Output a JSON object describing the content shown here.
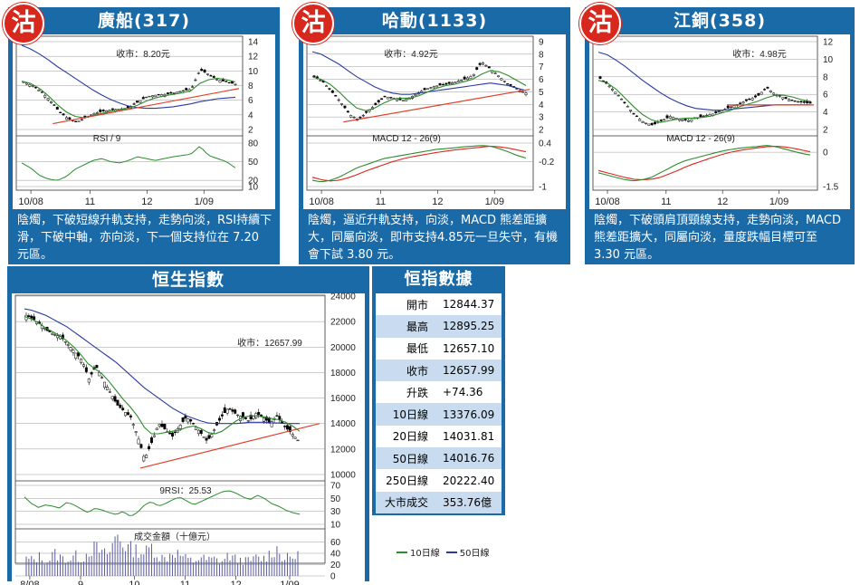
{
  "stamp_char": "沽",
  "panels": [
    {
      "title": "廣船(317)",
      "close_label": "收市：8.20元",
      "indicator_label": "RSI / 9",
      "x_labels": [
        "10/08",
        "11",
        "12",
        "1/09"
      ],
      "description": "陰燭，下破短線升軌支持，走勢向淡，RSI持續下滑，下破中軸，亦向淡，下一個支持位在 7.20 元區。"
    },
    {
      "title": "哈動(1133)",
      "close_label": "收市：4.92元",
      "indicator_label": "MACD 12 - 26(9)",
      "x_labels": [
        "10/08",
        "11",
        "12",
        "1/09"
      ],
      "description": "陰燭，逼近升軌支持，向淡，MACD 熊差距擴大，同屬向淡，即市支持4.85元一旦失守，有機會下試 3.80 元。"
    },
    {
      "title": "江銅(358)",
      "close_label": "收市：4.98元",
      "indicator_label": "MACD 12 - 26(9)",
      "x_labels": [
        "10/08",
        "11",
        "12",
        "1/09"
      ],
      "description": "陰燭，下破頭肩頂頸線支持，走勢向淡，MACD 熊差距擴大，同屬向淡，量度跌幅目標可至 3.30 元區。"
    }
  ],
  "hsi": {
    "title": "恒生指數",
    "close_label": "收市：12657.99",
    "rsi_label": "9RSI：25.53",
    "volume_label": "成交金額（十億元）",
    "x_labels": [
      "8/08",
      "9",
      "10",
      "11",
      "12",
      "1/09"
    ]
  },
  "stats": {
    "title": "恒指數據",
    "rows": [
      {
        "k": "開市",
        "v": "12844.37"
      },
      {
        "k": "最高",
        "v": "12895.25"
      },
      {
        "k": "最低",
        "v": "12657.10"
      },
      {
        "k": "收市",
        "v": "12657.99"
      },
      {
        "k": "升跌",
        "v": "+74.36"
      },
      {
        "k": "10日線",
        "v": "13376.09"
      },
      {
        "k": "20日線",
        "v": "14031.81"
      },
      {
        "k": "50日線",
        "v": "14016.76"
      },
      {
        "k": "250日線",
        "v": "20222.40"
      },
      {
        "k": "大市成交",
        "v": "353.76億"
      }
    ]
  },
  "legend": {
    "ma10": "10日線",
    "ma50": "50日線"
  },
  "colors": {
    "panel": "#1a6aa8",
    "stamp": "#d8281e",
    "ma10": "#2e8b2e",
    "ma50": "#2b3aa0",
    "trend": "#e0402a",
    "macd_signal": "#d8281e"
  },
  "chart_data": [
    {
      "type": "candlestick",
      "title": "廣船(317)",
      "x_categories": [
        "10/08",
        "11",
        "12",
        "1/09"
      ],
      "ylim": [
        2,
        14
      ],
      "yticks": [
        2,
        4,
        6,
        8,
        10,
        12,
        14
      ],
      "close": 8.2,
      "price_path": [
        8.5,
        8.0,
        7.2,
        6.0,
        4.5,
        3.5,
        3.0,
        3.6,
        4.2,
        4.5,
        4.7,
        4.8,
        5.0,
        5.8,
        6.5,
        6.7,
        6.8,
        7.0,
        7.3,
        7.5,
        10.2,
        9.5,
        8.8,
        8.5,
        8.2
      ],
      "ma10": [
        8.6,
        8.3,
        7.6,
        6.6,
        5.4,
        4.4,
        3.8,
        3.6,
        3.9,
        4.2,
        4.5,
        4.7,
        4.9,
        5.3,
        5.9,
        6.3,
        6.6,
        6.8,
        7.0,
        7.3,
        8.3,
        8.8,
        9.0,
        8.8,
        8.5
      ],
      "ma50": [
        13.5,
        13.0,
        12.3,
        11.5,
        10.6,
        9.8,
        9.0,
        8.2,
        7.4,
        6.7,
        6.1,
        5.6,
        5.2,
        5.0,
        4.9,
        4.9,
        5.0,
        5.1,
        5.3,
        5.5,
        5.8,
        6.0,
        6.2,
        6.3,
        6.4
      ],
      "trendline": [
        [
          0.15,
          2.8
        ],
        [
          1.0,
          7.6
        ]
      ],
      "indicator": {
        "type": "RSI",
        "period": 9,
        "ylim": [
          10,
          80
        ],
        "yticks": [
          80,
          50,
          20,
          10
        ],
        "values": [
          48,
          40,
          28,
          22,
          20,
          26,
          38,
          45,
          52,
          55,
          50,
          48,
          52,
          58,
          55,
          52,
          55,
          58,
          60,
          62,
          75,
          60,
          55,
          50,
          40
        ]
      }
    },
    {
      "type": "candlestick",
      "title": "哈動(1133)",
      "x_categories": [
        "10/08",
        "11",
        "12",
        "1/09"
      ],
      "ylim": [
        2,
        9
      ],
      "yticks": [
        2,
        3,
        4,
        5,
        6,
        7,
        8,
        9
      ],
      "close": 4.92,
      "price_path": [
        6.2,
        5.8,
        5.0,
        4.2,
        3.2,
        2.8,
        3.4,
        4.0,
        4.6,
        4.5,
        4.3,
        4.6,
        5.0,
        5.3,
        5.5,
        5.6,
        5.8,
        6.0,
        6.3,
        7.4,
        6.8,
        6.2,
        5.6,
        5.2,
        4.9
      ],
      "ma10": [
        6.2,
        6.0,
        5.6,
        5.0,
        4.3,
        3.7,
        3.5,
        3.7,
        4.1,
        4.4,
        4.5,
        4.5,
        4.7,
        5.0,
        5.3,
        5.5,
        5.6,
        5.8,
        6.0,
        6.4,
        6.7,
        6.6,
        6.3,
        5.9,
        5.5
      ],
      "ma50": [
        8.2,
        8.0,
        7.6,
        7.2,
        6.7,
        6.2,
        5.8,
        5.4,
        5.1,
        4.9,
        4.8,
        4.8,
        4.9,
        5.0,
        5.1,
        5.2,
        5.3,
        5.4,
        5.5,
        5.6,
        5.7,
        5.6,
        5.5,
        5.3,
        5.1
      ],
      "trendline": [
        [
          0.15,
          2.6
        ],
        [
          1.0,
          5.2
        ]
      ],
      "indicator": {
        "type": "MACD",
        "fast": 12,
        "slow": 26,
        "signal": [
          -0.7,
          -0.78,
          -0.82,
          -0.8,
          -0.72,
          -0.62,
          -0.5,
          -0.4,
          -0.3,
          -0.2,
          -0.12,
          -0.05,
          0.0,
          0.05,
          0.1,
          0.14,
          0.18,
          0.21,
          0.24,
          0.27,
          0.3,
          0.28,
          0.24,
          0.18,
          0.12
        ],
        "ylim": [
          -1.0,
          0.4
        ],
        "yticks": [
          0.4,
          -0.2,
          -1.0
        ],
        "macd": [
          -0.8,
          -0.85,
          -0.8,
          -0.7,
          -0.55,
          -0.4,
          -0.3,
          -0.2,
          -0.1,
          -0.05,
          0.0,
          0.05,
          0.1,
          0.15,
          0.2,
          0.22,
          0.25,
          0.28,
          0.3,
          0.32,
          0.3,
          0.22,
          0.12,
          0.0,
          -0.08
        ]
      }
    },
    {
      "type": "candlestick",
      "title": "江銅(358)",
      "x_categories": [
        "10/08",
        "11",
        "12",
        "1/09"
      ],
      "ylim": [
        2,
        12
      ],
      "yticks": [
        2,
        4,
        6,
        8,
        10,
        12
      ],
      "close": 4.98,
      "price_path": [
        7.8,
        7.0,
        6.0,
        4.8,
        3.6,
        2.8,
        2.5,
        3.0,
        3.5,
        3.2,
        3.0,
        3.3,
        3.6,
        3.8,
        4.2,
        4.6,
        5.0,
        5.4,
        5.8,
        6.8,
        6.0,
        5.6,
        5.3,
        5.1,
        4.98
      ],
      "ma10": [
        7.6,
        7.3,
        6.6,
        5.6,
        4.6,
        3.7,
        3.1,
        2.8,
        3.0,
        3.2,
        3.3,
        3.3,
        3.4,
        3.6,
        3.9,
        4.2,
        4.6,
        4.9,
        5.2,
        5.6,
        5.9,
        5.9,
        5.7,
        5.4,
        5.2
      ],
      "ma50": [
        10.8,
        10.5,
        9.9,
        9.2,
        8.4,
        7.6,
        6.9,
        6.2,
        5.6,
        5.1,
        4.7,
        4.4,
        4.3,
        4.2,
        4.2,
        4.3,
        4.4,
        4.5,
        4.6,
        4.7,
        4.8,
        4.8,
        4.8,
        4.8,
        4.8
      ],
      "trendline": [
        [
          0.6,
          4.8
        ],
        [
          1.0,
          4.8
        ]
      ],
      "indicator": {
        "type": "MACD",
        "fast": 12,
        "slow": 26,
        "signal": [
          -0.8,
          -0.9,
          -1.0,
          -1.1,
          -1.18,
          -1.2,
          -1.18,
          -1.1,
          -0.95,
          -0.8,
          -0.62,
          -0.48,
          -0.35,
          -0.22,
          -0.1,
          0.0,
          0.08,
          0.14,
          0.19,
          0.24,
          0.26,
          0.24,
          0.18,
          0.1,
          0.02
        ],
        "ylim": [
          -1.5,
          0.4
        ],
        "yticks": [
          0,
          -1.5
        ],
        "macd": [
          -0.9,
          -1.0,
          -1.1,
          -1.2,
          -1.25,
          -1.2,
          -1.1,
          -0.9,
          -0.7,
          -0.5,
          -0.35,
          -0.25,
          -0.15,
          -0.05,
          0.05,
          0.12,
          0.18,
          0.22,
          0.25,
          0.3,
          0.25,
          0.15,
          0.05,
          -0.05,
          -0.12
        ]
      }
    },
    {
      "type": "candlestick",
      "title": "恒生指數",
      "x_categories": [
        "8/08",
        "9",
        "10",
        "11",
        "12",
        "1/09"
      ],
      "ylim": [
        10000,
        24000
      ],
      "yticks": [
        10000,
        12000,
        14000,
        16000,
        18000,
        20000,
        22000,
        24000
      ],
      "close": 12657.99,
      "price_path": [
        22500,
        22200,
        21800,
        21300,
        21000,
        20800,
        20200,
        19600,
        19000,
        17500,
        18500,
        17500,
        16500,
        15500,
        15000,
        14500,
        13000,
        11200,
        12500,
        14000,
        13500,
        13000,
        13800,
        14500,
        14000,
        13300,
        12600,
        13500,
        14500,
        15200,
        14800,
        14500,
        14200,
        14800,
        14500,
        14000,
        14600,
        13800,
        13300,
        12700
      ],
      "ma10": [
        22400,
        22200,
        21900,
        21500,
        21200,
        20900,
        20500,
        20000,
        19400,
        18700,
        18300,
        17900,
        17300,
        16600,
        15900,
        15300,
        14600,
        13700,
        13200,
        13200,
        13300,
        13400,
        13500,
        13700,
        13800,
        13600,
        13300,
        13200,
        13400,
        13800,
        14200,
        14500,
        14600,
        14600,
        14500,
        14400,
        14300,
        14100,
        13800,
        13400
      ],
      "ma50": [
        23000,
        22900,
        22700,
        22500,
        22200,
        21900,
        21600,
        21200,
        20800,
        20400,
        20000,
        19600,
        19200,
        18800,
        18300,
        17800,
        17300,
        16800,
        16400,
        16000,
        15600,
        15200,
        14900,
        14600,
        14400,
        14200,
        14050,
        14000,
        14000,
        14000,
        14000,
        14050,
        14100,
        14100,
        14100,
        14050,
        14050,
        14000,
        14000,
        14000
      ],
      "trendline": [
        [
          0.4,
          10500
        ],
        [
          1.0,
          14000
        ]
      ],
      "rsi": {
        "period": 9,
        "ylim": [
          10,
          70
        ],
        "yticks": [
          70,
          50,
          30,
          10
        ],
        "values": [
          52,
          42,
          36,
          40,
          38,
          35,
          44,
          40,
          34,
          28,
          35,
          32,
          28,
          25,
          30,
          22,
          28,
          40,
          45,
          38,
          42,
          48,
          52,
          46,
          40,
          45,
          50,
          55,
          60,
          62,
          58,
          52,
          48,
          55,
          50,
          42,
          38,
          32,
          28,
          25.53
        ]
      },
      "volume": {
        "unit": "十億元",
        "ylim": [
          0,
          80
        ],
        "yticks": [
          60,
          40,
          20,
          0
        ],
        "values": [
          30,
          28,
          35,
          25,
          40,
          32,
          28,
          36,
          30,
          45,
          50,
          38,
          42,
          75,
          55,
          48,
          45,
          40,
          52,
          35,
          30,
          44,
          38,
          30,
          26,
          33,
          28,
          30,
          25,
          36,
          30,
          28,
          26,
          32,
          30,
          40,
          48,
          30,
          33,
          35
        ]
      }
    }
  ]
}
